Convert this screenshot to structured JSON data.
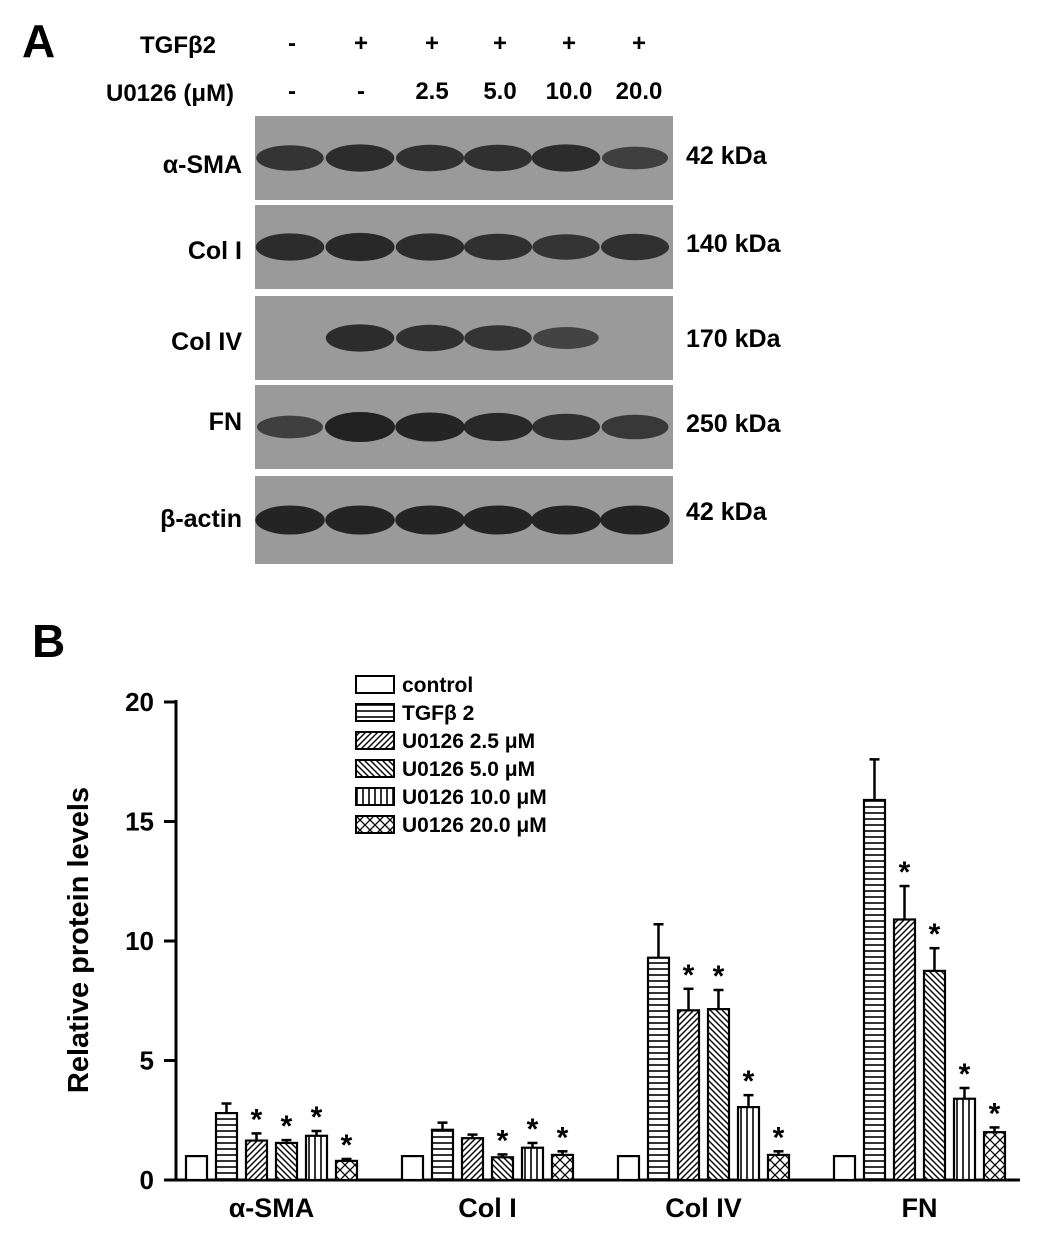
{
  "panelA": {
    "letter": "A",
    "treatments": [
      {
        "label": "TGFβ2",
        "values": [
          "-",
          "+",
          "+",
          "+",
          "+",
          "+"
        ]
      },
      {
        "label": "U0126 (μM)",
        "values": [
          "-",
          "-",
          "2.5",
          "5.0",
          "10.0",
          "20.0"
        ]
      }
    ],
    "blots": [
      {
        "label": "α-SMA",
        "size": "42 kDa",
        "bands": [
          0.75,
          0.85,
          0.8,
          0.8,
          0.85,
          0.6
        ]
      },
      {
        "label": "Col I",
        "size": "140 kDa",
        "bands": [
          0.85,
          0.9,
          0.85,
          0.8,
          0.75,
          0.8
        ]
      },
      {
        "label": "Col IV",
        "size": "170 kDa",
        "bands": [
          0.0,
          0.85,
          0.8,
          0.75,
          0.55,
          0.0
        ]
      },
      {
        "label": "FN",
        "size": "250 kDa",
        "bands": [
          0.6,
          1.0,
          0.95,
          0.9,
          0.8,
          0.7
        ]
      },
      {
        "label": "β-actin",
        "size": "42 kDa",
        "bands": [
          0.95,
          0.95,
          0.95,
          0.95,
          0.95,
          0.95
        ]
      }
    ]
  },
  "panelB": {
    "letter": "B"
  },
  "chart_data": {
    "type": "bar",
    "title": "",
    "xlabel": "",
    "ylabel": "Relative protein levels",
    "ylim": [
      0,
      20
    ],
    "yticks": [
      0,
      5,
      10,
      15,
      20
    ],
    "categories": [
      "α-SMA",
      "Col I",
      "Col IV",
      "FN"
    ],
    "legend_position": "top-center",
    "significance_marker": "*",
    "series": [
      {
        "name": "control",
        "pattern": "blank",
        "values": [
          1.0,
          1.0,
          1.0,
          1.0
        ],
        "errors": [
          0,
          0,
          0,
          0
        ],
        "significant": [
          false,
          false,
          false,
          false
        ]
      },
      {
        "name": "TGFβ 2",
        "pattern": "horizontal",
        "values": [
          2.8,
          2.1,
          9.3,
          15.9
        ],
        "errors": [
          0.4,
          0.3,
          1.4,
          1.7
        ],
        "significant": [
          false,
          false,
          false,
          false
        ]
      },
      {
        "name": "U0126 2.5 μM",
        "pattern": "diag-up",
        "values": [
          1.65,
          1.75,
          7.1,
          10.9
        ],
        "errors": [
          0.3,
          0.15,
          0.9,
          1.4
        ],
        "significant": [
          true,
          false,
          true,
          true
        ]
      },
      {
        "name": "U0126 5.0 μM",
        "pattern": "diag-down",
        "values": [
          1.55,
          0.95,
          7.15,
          8.75
        ],
        "errors": [
          0.12,
          0.12,
          0.8,
          0.95
        ],
        "significant": [
          true,
          true,
          true,
          true
        ]
      },
      {
        "name": "U0126 10.0 μM",
        "pattern": "vertical",
        "values": [
          1.85,
          1.35,
          3.05,
          3.4
        ],
        "errors": [
          0.2,
          0.2,
          0.5,
          0.45
        ],
        "significant": [
          true,
          true,
          true,
          true
        ]
      },
      {
        "name": "U0126 20.0 μM",
        "pattern": "cross",
        "values": [
          0.8,
          1.05,
          1.05,
          2.0
        ],
        "errors": [
          0.08,
          0.15,
          0.15,
          0.2
        ],
        "significant": [
          true,
          true,
          true,
          true
        ]
      }
    ]
  },
  "colors": {
    "bar_stroke": "#000000",
    "bar_fill": "#ffffff",
    "blot_bg": "#9a9a9a",
    "band": "#1a1a1a"
  }
}
